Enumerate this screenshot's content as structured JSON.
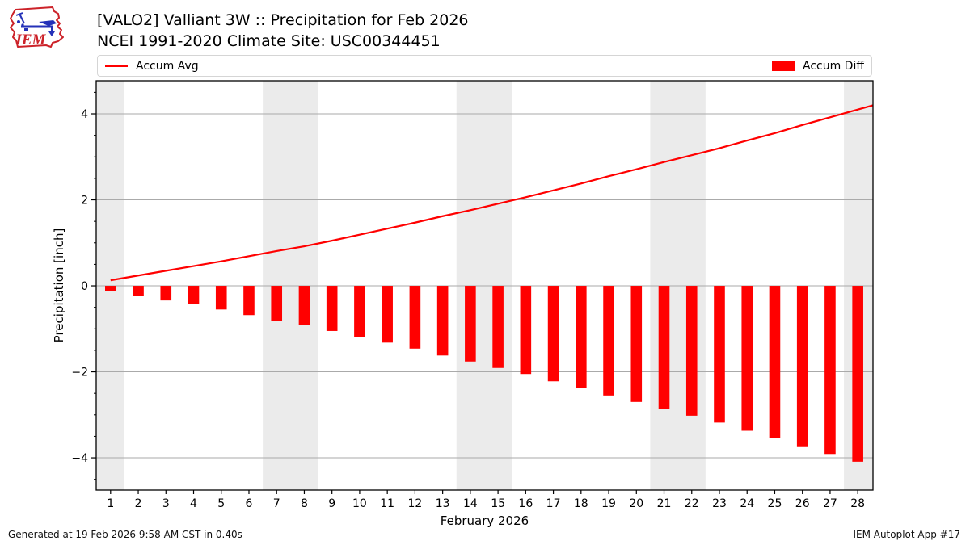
{
  "header": {
    "title_line1": "[VALO2] Valliant 3W :: Precipitation for Feb 2026",
    "title_line2": "NCEI 1991-2020 Climate Site: USC00344451",
    "logo_text": "IEM"
  },
  "legend": {
    "avg_label": "Accum Avg",
    "diff_label": "Accum Diff"
  },
  "footer": {
    "left": "Generated at 19 Feb 2026 9:58 AM CST in 0.40s",
    "right": "IEM Autoplot App #17"
  },
  "colors": {
    "series_red": "#ff0000",
    "weekend_band": "#ebebeb",
    "gridline": "#aaaaaa",
    "frame": "#000000",
    "tick_text": "#000000",
    "logo_red": "#cc2229",
    "logo_blue": "#2431b8"
  },
  "chart_data": {
    "type": "bar",
    "title": "[VALO2] Valliant 3W :: Precipitation for Feb 2026",
    "subtitle": "NCEI 1991-2020 Climate Site: USC00344451",
    "x": [
      1,
      2,
      3,
      4,
      5,
      6,
      7,
      8,
      9,
      10,
      11,
      12,
      13,
      14,
      15,
      16,
      17,
      18,
      19,
      20,
      21,
      22,
      23,
      24,
      25,
      26,
      27,
      28
    ],
    "series": [
      {
        "name": "Accum Avg",
        "type": "line",
        "color": "#ff0000",
        "values": [
          0.13,
          0.24,
          0.35,
          0.46,
          0.57,
          0.69,
          0.81,
          0.92,
          1.05,
          1.19,
          1.33,
          1.47,
          1.62,
          1.76,
          1.91,
          2.06,
          2.22,
          2.38,
          2.55,
          2.71,
          2.88,
          3.04,
          3.2,
          3.38,
          3.55,
          3.74,
          3.92,
          4.1
        ]
      },
      {
        "name": "Accum Diff",
        "type": "bar",
        "color": "#ff0000",
        "values": [
          -0.12,
          -0.24,
          -0.34,
          -0.43,
          -0.55,
          -0.68,
          -0.81,
          -0.91,
          -1.05,
          -1.19,
          -1.32,
          -1.46,
          -1.62,
          -1.76,
          -1.91,
          -2.05,
          -2.22,
          -2.38,
          -2.55,
          -2.7,
          -2.87,
          -3.02,
          -3.18,
          -3.37,
          -3.54,
          -3.75,
          -3.91,
          -4.09
        ]
      }
    ],
    "xlabel": "February 2026",
    "ylabel": "Precipitation [inch]",
    "xlim": [
      0.48,
      28.55
    ],
    "ylim": [
      -4.75,
      4.77
    ],
    "yticks": [
      -4,
      -2,
      0,
      2,
      4
    ],
    "ytick_labels": [
      "−4",
      "−2",
      "0",
      "2",
      "4"
    ],
    "weekend_bands": [
      [
        0.48,
        1.5
      ],
      [
        6.5,
        8.5
      ],
      [
        13.5,
        15.5
      ],
      [
        20.5,
        22.5
      ],
      [
        27.5,
        28.55
      ]
    ],
    "grid": true,
    "legend_position": "top"
  }
}
